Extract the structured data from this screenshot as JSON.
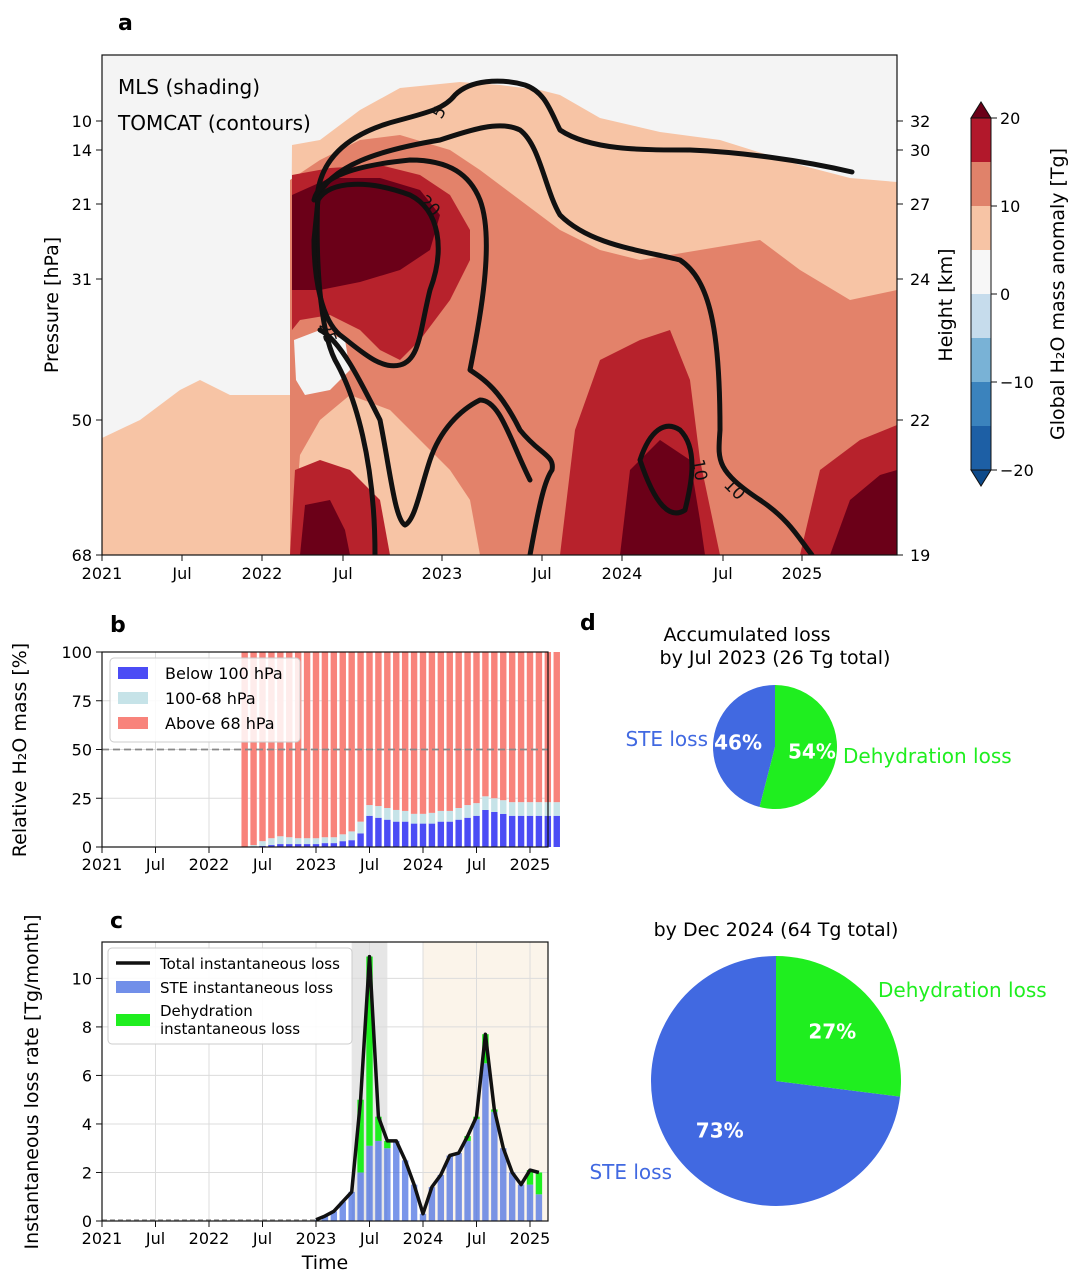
{
  "panel_letters": {
    "a": "a",
    "b": "b",
    "c": "c",
    "d": "d"
  },
  "time_ticks": [
    "2021",
    "Jul",
    "2022",
    "Jul",
    "2023",
    "Jul",
    "2024",
    "Jul",
    "2025"
  ],
  "colors": {
    "stratosphere_above": "#f8837b",
    "tropo_100_68": "#c6e3e8",
    "below_100": "#4b4cf5",
    "ste": "#4169e1",
    "dehydration": "#1fee1f",
    "total_line": "#111111",
    "shade_grey": "#e6e6e6",
    "shade_tan": "#fbf4ea"
  },
  "chart_data": [
    {
      "id": "a",
      "type": "heatmap",
      "title": "",
      "annotations": [
        "MLS (shading)",
        "TOMCAT (contours)"
      ],
      "ylabel": "Pressure [hPa]",
      "ylabel_right": "Height [km]",
      "colorbar_label": "Global H₂O mass anomaly [Tg]",
      "y_ticks": [
        "10",
        "14",
        "21",
        "31",
        "50",
        "68"
      ],
      "y_ticks_right": [
        "32",
        "30",
        "27",
        "24",
        "22",
        "19"
      ],
      "colorbar_ticks": [
        "20",
        "10",
        "0",
        "−10",
        "−20"
      ],
      "colorbar_levels": [
        20,
        15,
        10,
        5,
        0,
        -5,
        -10,
        -15,
        -20
      ],
      "contour_labels": [
        "5",
        "20",
        "25",
        "10",
        "10"
      ],
      "x_range": [
        "2021-01",
        "2025-07"
      ],
      "y_range_hPa": [
        68,
        7
      ]
    },
    {
      "id": "b",
      "type": "bar",
      "ylabel": "Relative H₂O mass [%]",
      "ylim": [
        0,
        100
      ],
      "y_ticks": [
        "0",
        "25",
        "50",
        "75",
        "100"
      ],
      "reference_line": 50,
      "x_ticks": [
        "2021",
        "Jul",
        "2022",
        "Jul",
        "2023",
        "Jul",
        "2024",
        "Jul",
        "2025"
      ],
      "start_month": "2022-05",
      "legend": [
        "Below 100 hPa",
        "100-68 hPa",
        "Above 68 hPa"
      ],
      "series": [
        {
          "name": "Below 100 hPa",
          "values": [
            0,
            0,
            0.5,
            1,
            1.5,
            1.5,
            1.5,
            1.5,
            1.5,
            2,
            2,
            3,
            3.5,
            7,
            16,
            15,
            14,
            13,
            13,
            12,
            12,
            12,
            13,
            13,
            14,
            15,
            16,
            19,
            18,
            17,
            16,
            16,
            16,
            16,
            16,
            16
          ]
        },
        {
          "name": "100-68 hPa",
          "values": [
            0,
            1,
            2.5,
            3.5,
            4,
            3.5,
            3,
            3,
            3,
            3,
            3,
            3.5,
            4.5,
            6,
            5.5,
            6,
            6,
            6,
            5.5,
            5,
            5,
            5.5,
            5.5,
            5.5,
            6,
            6.5,
            6.5,
            7,
            7,
            7,
            7,
            7,
            7,
            7,
            7,
            7
          ]
        },
        {
          "name": "Above 68 hPa",
          "values": [
            100,
            99,
            97,
            95.5,
            94.5,
            95,
            95.5,
            95.5,
            95.5,
            95,
            95,
            93.5,
            92,
            87,
            78.5,
            79,
            80,
            81,
            81.5,
            83,
            83,
            82.5,
            81.5,
            81.5,
            80,
            78.5,
            77.5,
            74,
            75,
            76,
            77,
            77,
            77,
            77,
            77,
            77
          ]
        }
      ]
    },
    {
      "id": "c",
      "type": "bar",
      "xlabel": "Time",
      "ylabel": "Instantaneous loss rate [Tg/month]",
      "ylim": [
        0,
        11.5
      ],
      "y_ticks": [
        "0",
        "2",
        "4",
        "6",
        "8",
        "10"
      ],
      "x_ticks": [
        "2021",
        "Jul",
        "2022",
        "Jul",
        "2023",
        "Jul",
        "2024",
        "Jul",
        "2025"
      ],
      "start_month": "2023-01",
      "legend": [
        "Total instantaneous loss",
        "STE instantaneous loss",
        "Dehydration instantaneous loss"
      ],
      "series": [
        {
          "name": "STE instantaneous loss",
          "values": [
            0.05,
            0.2,
            0.4,
            0.8,
            1.2,
            2.0,
            3.1,
            3.3,
            3.0,
            3.3,
            2.5,
            1.5,
            0.3,
            1.4,
            1.9,
            2.7,
            2.8,
            3.3,
            4.2,
            6.5,
            4.5,
            3.0,
            2.0,
            1.5,
            1.5,
            1.1
          ]
        },
        {
          "name": "Dehydration instantaneous loss",
          "values": [
            0,
            0,
            0,
            0,
            0,
            3.0,
            7.8,
            1.0,
            0.3,
            0,
            0,
            0,
            0,
            0,
            0,
            0,
            0,
            0.2,
            0.1,
            1.2,
            0.1,
            0,
            0,
            0,
            0.6,
            0.9
          ]
        },
        {
          "name": "Total instantaneous loss",
          "values": [
            0.05,
            0.2,
            0.4,
            0.8,
            1.2,
            5.0,
            10.9,
            4.3,
            3.3,
            3.3,
            2.5,
            1.5,
            0.3,
            1.4,
            1.9,
            2.7,
            2.8,
            3.5,
            4.3,
            7.7,
            4.6,
            3.0,
            2.0,
            1.5,
            2.1,
            2.0
          ]
        }
      ],
      "shaded_periods": [
        [
          "2023-05",
          "2023-09"
        ],
        [
          "2024-01",
          "2025-05"
        ]
      ]
    },
    {
      "id": "d1",
      "type": "pie",
      "title_line1": "Accumulated loss",
      "title_line2": "by Jul 2023 (26 Tg total)",
      "slices": [
        {
          "label": "STE loss",
          "value": 46,
          "pct": "46%"
        },
        {
          "label": "Dehydration loss",
          "value": 54,
          "pct": "54%"
        }
      ]
    },
    {
      "id": "d2",
      "type": "pie",
      "title": "by Dec 2024 (64 Tg total)",
      "slices": [
        {
          "label": "STE loss",
          "value": 73,
          "pct": "73%"
        },
        {
          "label": "Dehydration loss",
          "value": 27,
          "pct": "27%"
        }
      ]
    }
  ]
}
